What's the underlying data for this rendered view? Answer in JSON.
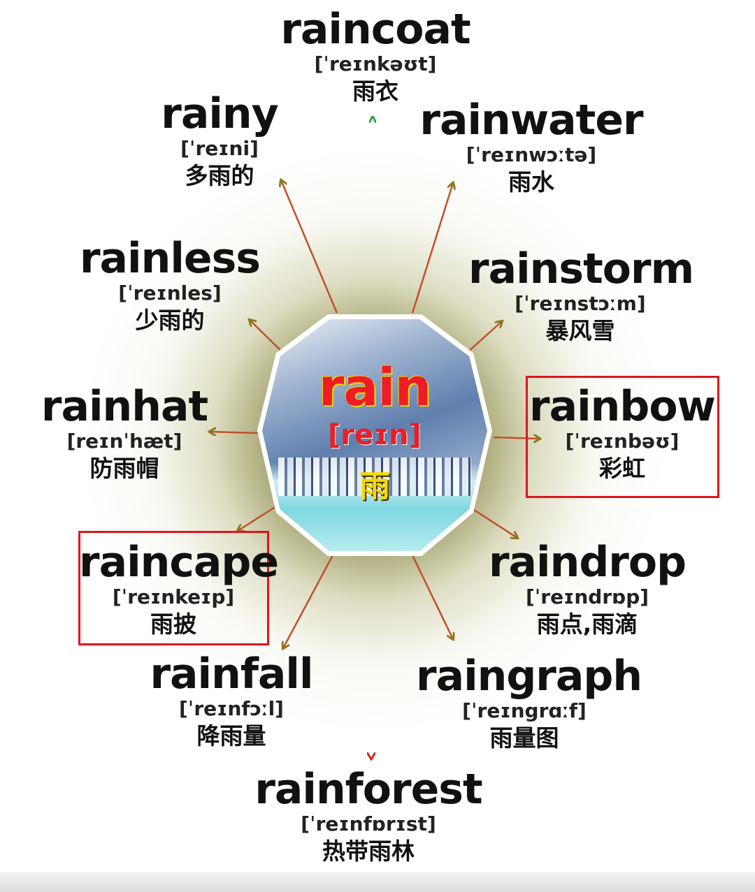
{
  "center": {
    "word": "rain",
    "phonetic": "[reɪn]",
    "meaning": "雨"
  },
  "words": {
    "raincoat": {
      "word": "raincoat",
      "phonetic": "[ˈreɪnkəʊt]",
      "meaning": "雨衣"
    },
    "rainy": {
      "word": "rainy",
      "phonetic": "[ˈreɪni]",
      "meaning": "多雨的"
    },
    "rainwater": {
      "word": "rainwater",
      "phonetic": "[ˈreɪnwɔːtə]",
      "meaning": "雨水"
    },
    "rainless": {
      "word": "rainless",
      "phonetic": "[ˈreɪnles]",
      "meaning": "少雨的"
    },
    "rainstorm": {
      "word": "rainstorm",
      "phonetic": "[ˈreɪnstɔːm]",
      "meaning": "暴风雪"
    },
    "rainhat": {
      "word": "rainhat",
      "phonetic": "[reɪnˈhæt]",
      "meaning": "防雨帽"
    },
    "rainbow": {
      "word": "rainbow",
      "phonetic": "[ˈreɪnbəʊ]",
      "meaning": "彩虹"
    },
    "raincape": {
      "word": "raincape",
      "phonetic": "[ˈreɪnkeɪp]",
      "meaning": "雨披"
    },
    "raindrop": {
      "word": "raindrop",
      "phonetic": "[ˈreɪndrɒp]",
      "meaning": "雨点,雨滴"
    },
    "rainfall": {
      "word": "rainfall",
      "phonetic": "[ˈreɪnfɔːl]",
      "meaning": "降雨量"
    },
    "raingraph": {
      "word": "raingraph",
      "phonetic": "[ˈreɪngrɑːf]",
      "meaning": "雨量图"
    },
    "rainforest": {
      "word": "rainforest",
      "phonetic": "[ˈreɪnfɒrɪst]",
      "meaning": "热带雨林"
    }
  },
  "colors": {
    "highlight": "#e0141e",
    "center_text": "#ee1c24",
    "center_meaning": "#f5d800"
  }
}
